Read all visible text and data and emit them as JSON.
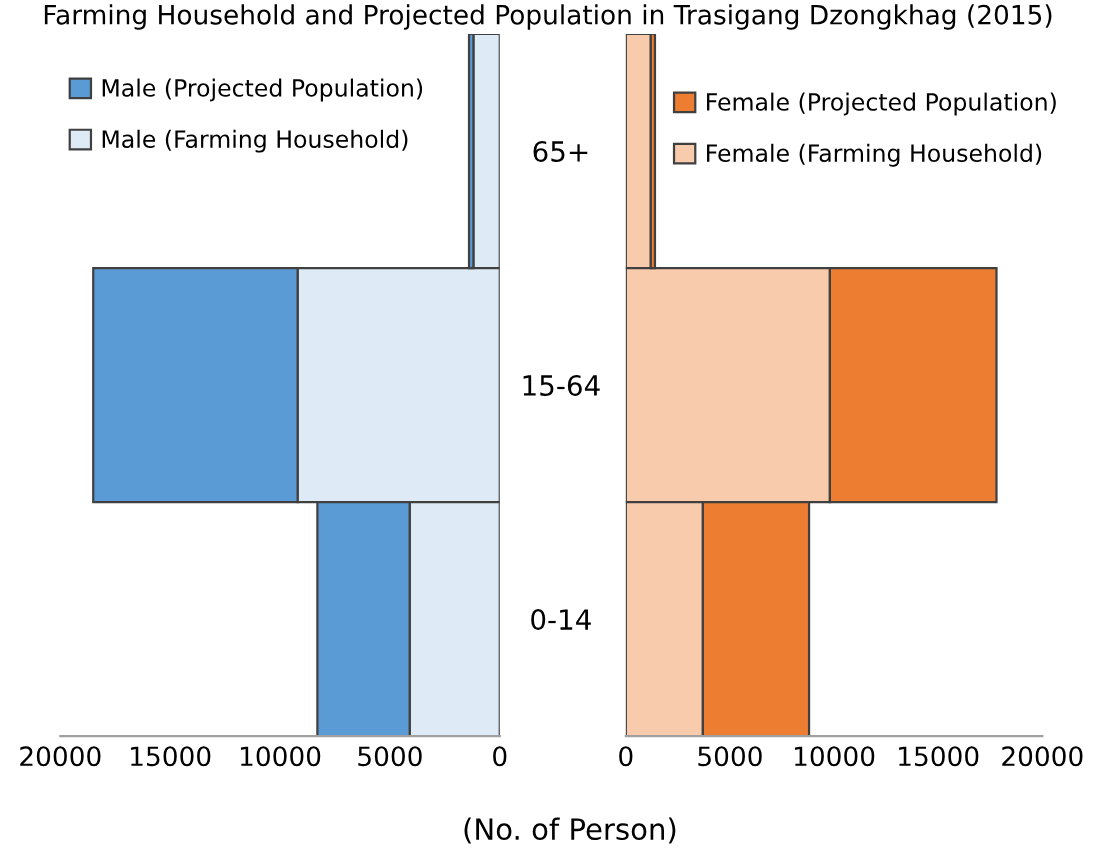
{
  "chart_data": [
    {
      "type": "bar",
      "orientation": "horizontal",
      "stacked": true,
      "title": "Farming Household and Projected Population in Trasigang Dzongkhag (2015)",
      "xlabel": "(No. of Person)",
      "categories": [
        "65+",
        "15-64",
        "0-14"
      ],
      "series": [
        {
          "name": "Male (Farming Household)",
          "color": "#deebf7",
          "values": [
            1200,
            9200,
            4100
          ]
        },
        {
          "name": "Male (Projected Population)",
          "color": "#5b9bd5",
          "values": [
            200,
            9300,
            4200
          ]
        }
      ],
      "xlim": [
        20000,
        0
      ],
      "xticks": [
        20000,
        15000,
        10000,
        5000,
        0
      ],
      "legend": "top left",
      "grid": false
    },
    {
      "type": "bar",
      "orientation": "horizontal",
      "stacked": true,
      "categories": [
        null,
        null,
        null
      ],
      "series": [
        {
          "name": "Female (Farming Household)",
          "color": "#f8cbad",
          "values": [
            1200,
            9800,
            3700
          ]
        },
        {
          "name": "Female (Projected Population)",
          "color": "#ed7d31",
          "values": [
            200,
            8000,
            5100
          ]
        }
      ],
      "xlim": [
        0,
        20000
      ],
      "xticks": [
        0,
        5000,
        10000,
        15000,
        20000
      ],
      "tick_labels": "x",
      "legend": "top right",
      "grid": false
    }
  ]
}
